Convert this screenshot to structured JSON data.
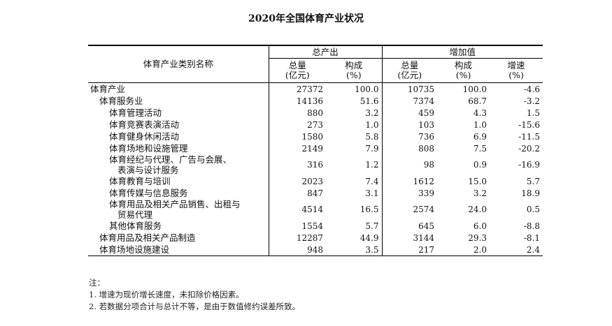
{
  "title": "2020年全国体育产业状况",
  "header": {
    "category": "体育产业类别名称",
    "output_group": "总产出",
    "value_added_group": "增加值",
    "col_total_line1": "总量",
    "col_total_line2": "(亿元)",
    "col_share_line1": "构成",
    "col_share_line2": "(%)",
    "col_growth_line1": "增速",
    "col_growth_line2": "(%)"
  },
  "rows": [
    {
      "level": 0,
      "name": "体育产业",
      "name2": "",
      "out_total": "27372",
      "out_share": "100.0",
      "va_total": "10735",
      "va_share": "100.0",
      "va_growth": "-4.6"
    },
    {
      "level": 1,
      "name": "体育服务业",
      "name2": "",
      "out_total": "14136",
      "out_share": "51.6",
      "va_total": "7374",
      "va_share": "68.7",
      "va_growth": "-3.2"
    },
    {
      "level": 2,
      "name": "体育管理活动",
      "name2": "",
      "out_total": "880",
      "out_share": "3.2",
      "va_total": "459",
      "va_share": "4.3",
      "va_growth": "1.5"
    },
    {
      "level": 2,
      "name": "体育竞赛表演活动",
      "name2": "",
      "out_total": "273",
      "out_share": "1.0",
      "va_total": "103",
      "va_share": "1.0",
      "va_growth": "-15.6"
    },
    {
      "level": 2,
      "name": "体育健身休闲活动",
      "name2": "",
      "out_total": "1580",
      "out_share": "5.8",
      "va_total": "736",
      "va_share": "6.9",
      "va_growth": "-11.5"
    },
    {
      "level": 2,
      "name": "体育场地和设施管理",
      "name2": "",
      "out_total": "2149",
      "out_share": "7.9",
      "va_total": "808",
      "va_share": "7.5",
      "va_growth": "-20.2"
    },
    {
      "level": 2,
      "name": "体育经纪与代理、广告与会展、",
      "name2": "表演与设计服务",
      "out_total": "316",
      "out_share": "1.2",
      "va_total": "98",
      "va_share": "0.9",
      "va_growth": "-16.9"
    },
    {
      "level": 2,
      "name": "体育教育与培训",
      "name2": "",
      "out_total": "2023",
      "out_share": "7.4",
      "va_total": "1612",
      "va_share": "15.0",
      "va_growth": "5.7"
    },
    {
      "level": 2,
      "name": "体育传媒与信息服务",
      "name2": "",
      "out_total": "847",
      "out_share": "3.1",
      "va_total": "339",
      "va_share": "3.2",
      "va_growth": "18.9"
    },
    {
      "level": 2,
      "name": "体育用品及相关产品销售、出租与",
      "name2": "贸易代理",
      "out_total": "4514",
      "out_share": "16.5",
      "va_total": "2574",
      "va_share": "24.0",
      "va_growth": "0.5"
    },
    {
      "level": 2,
      "name": "其他体育服务",
      "name2": "",
      "out_total": "1554",
      "out_share": "5.7",
      "va_total": "645",
      "va_share": "6.0",
      "va_growth": "-8.8"
    },
    {
      "level": 1,
      "name": "体育用品及相关产品制造",
      "name2": "",
      "out_total": "12287",
      "out_share": "44.9",
      "va_total": "3144",
      "va_share": "29.3",
      "va_growth": "-8.1"
    },
    {
      "level": 1,
      "name": "体育场地设施建设",
      "name2": "",
      "out_total": "948",
      "out_share": "3.5",
      "va_total": "217",
      "va_share": "2.0",
      "va_growth": "2.4"
    }
  ],
  "notes": {
    "heading": "注：",
    "line1": "1. 增速为现价增长速度，未扣除价格因素。",
    "line2": "2. 若数据分项合计与总计不等，是由于数值修约误差所致。"
  }
}
